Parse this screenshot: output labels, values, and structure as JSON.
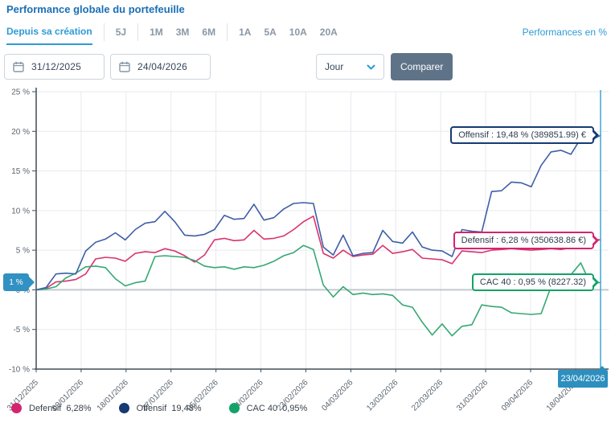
{
  "header": {
    "title": "Performance globale du portefeuille",
    "performances_label": "Performances en %"
  },
  "tabs": {
    "active": "Depuis sa création",
    "items": [
      "Depuis sa création",
      "5J",
      "1M",
      "3M",
      "6M",
      "1A",
      "5A",
      "10A",
      "20A"
    ]
  },
  "controls": {
    "date_from": "31/12/2025",
    "date_to": "24/04/2026",
    "interval": "Jour",
    "compare_label": "Comparer"
  },
  "colors": {
    "accent_blue": "#2e9bd6",
    "title_blue": "#1a6fb5",
    "compare_button": "#5f7388",
    "crosshair_teal": "#3ea6d4",
    "badge_teal": "#3191c2",
    "grid": "#e7eaee",
    "zero_line": "#c3c9cf",
    "axis": "#3f4e59"
  },
  "chart_data": {
    "type": "line",
    "ylim": [
      -10,
      25
    ],
    "grid": true,
    "legend_position": "bottom",
    "y_ticks": [
      {
        "value": 25,
        "label": "25 %"
      },
      {
        "value": 20,
        "label": "20 %"
      },
      {
        "value": 15,
        "label": "15 %"
      },
      {
        "value": 10,
        "label": "10 %"
      },
      {
        "value": 5,
        "label": "5 %"
      },
      {
        "value": 0,
        "label": "0 %"
      },
      {
        "value": -5,
        "label": "-5 %"
      },
      {
        "value": -10,
        "label": "-10 %"
      }
    ],
    "x_tick_labels": [
      "31/12/2025",
      "09/01/2026",
      "18/01/2026",
      "27/01/2026",
      "05/02/2026",
      "14/02/2026",
      "23/02/2026",
      "04/03/2026",
      "13/03/2026",
      "22/03/2026",
      "31/03/2026",
      "09/04/2026",
      "18/04/2026"
    ],
    "x_tick_day_offsets": [
      0,
      9,
      18,
      27,
      36,
      45,
      54,
      63,
      72,
      81,
      90,
      99,
      108
    ],
    "x_total_days": 113,
    "crosshair": {
      "date_label": "23/04/2026",
      "value_label": "1 %",
      "value_pct": 0.95
    },
    "series": [
      {
        "name": "Defensif",
        "color": "#d9336f",
        "dot_color": "#d5246e",
        "legend_value": "6,28%",
        "end_value": 6.28,
        "callout": "Defensif : 6,28 % (350638.86 €)",
        "values": [
          0,
          0.2,
          1,
          1.1,
          1.3,
          2,
          3.9,
          4.1,
          4,
          3.6,
          4.6,
          4.8,
          4.7,
          5.2,
          4.9,
          4.3,
          3.5,
          4.4,
          6.3,
          6.5,
          6.2,
          6.3,
          7.5,
          6.4,
          6.5,
          6.8,
          7.6,
          8.6,
          9.3,
          4.6,
          4,
          5,
          4.2,
          4.4,
          4.5,
          5.6,
          4.6,
          4.8,
          5.1,
          4,
          3.9,
          3.8,
          3.3,
          4.9,
          4.8,
          4.7,
          5,
          5.1,
          5.2,
          5.1,
          5,
          5.1,
          5.2,
          5.1,
          5.3,
          5.5,
          6.5,
          6.28
        ]
      },
      {
        "name": "Offensif",
        "color": "#3e5fa6",
        "dot_color": "#163a72",
        "legend_value": "19,48%",
        "end_value": 19.48,
        "callout": "Offensif : 19,48 % (389851.99) €",
        "values": [
          0,
          0.3,
          2,
          2.1,
          2,
          4.9,
          6,
          6.4,
          7.2,
          6.3,
          7.6,
          8.4,
          8.6,
          9.9,
          8.6,
          6.9,
          6.8,
          7,
          7.6,
          9.4,
          8.9,
          9,
          10.8,
          8.8,
          9.1,
          10.2,
          10.9,
          11,
          10.9,
          5.4,
          4.4,
          6.9,
          4.3,
          4.6,
          4.7,
          7.5,
          6.1,
          5.9,
          7.3,
          5.4,
          5,
          4.9,
          4.2,
          7.6,
          7.4,
          7.3,
          12.4,
          12.5,
          13.6,
          13.5,
          13,
          15.7,
          17.4,
          17.6,
          17.1,
          19.1,
          18.9,
          19.48
        ]
      },
      {
        "name": "CAC 40",
        "color": "#35a873",
        "dot_color": "#13a268",
        "legend_value": "0,95%",
        "end_value": 0.95,
        "callout": "CAC 40 : 0,95 % (8227.32)",
        "values": [
          0,
          0.1,
          0.4,
          1.5,
          2.1,
          2.9,
          3,
          2.8,
          1.4,
          0.5,
          0.9,
          1.1,
          4.2,
          4.3,
          4.2,
          4.1,
          3.7,
          3,
          2.8,
          2.9,
          2.6,
          2.9,
          2.8,
          3.1,
          3.6,
          4.3,
          4.7,
          5.6,
          5.1,
          0.6,
          -0.9,
          0.4,
          -0.6,
          -0.4,
          -0.6,
          -0.5,
          -0.7,
          -1.9,
          -2.2,
          -4.1,
          -5.7,
          -4.3,
          -5.8,
          -4.6,
          -4.4,
          -1.9,
          -2.1,
          -2.2,
          -2.9,
          -3,
          -3.1,
          -3,
          0.4,
          0.4,
          1.9,
          3.4,
          0.7,
          0.95
        ]
      }
    ]
  }
}
